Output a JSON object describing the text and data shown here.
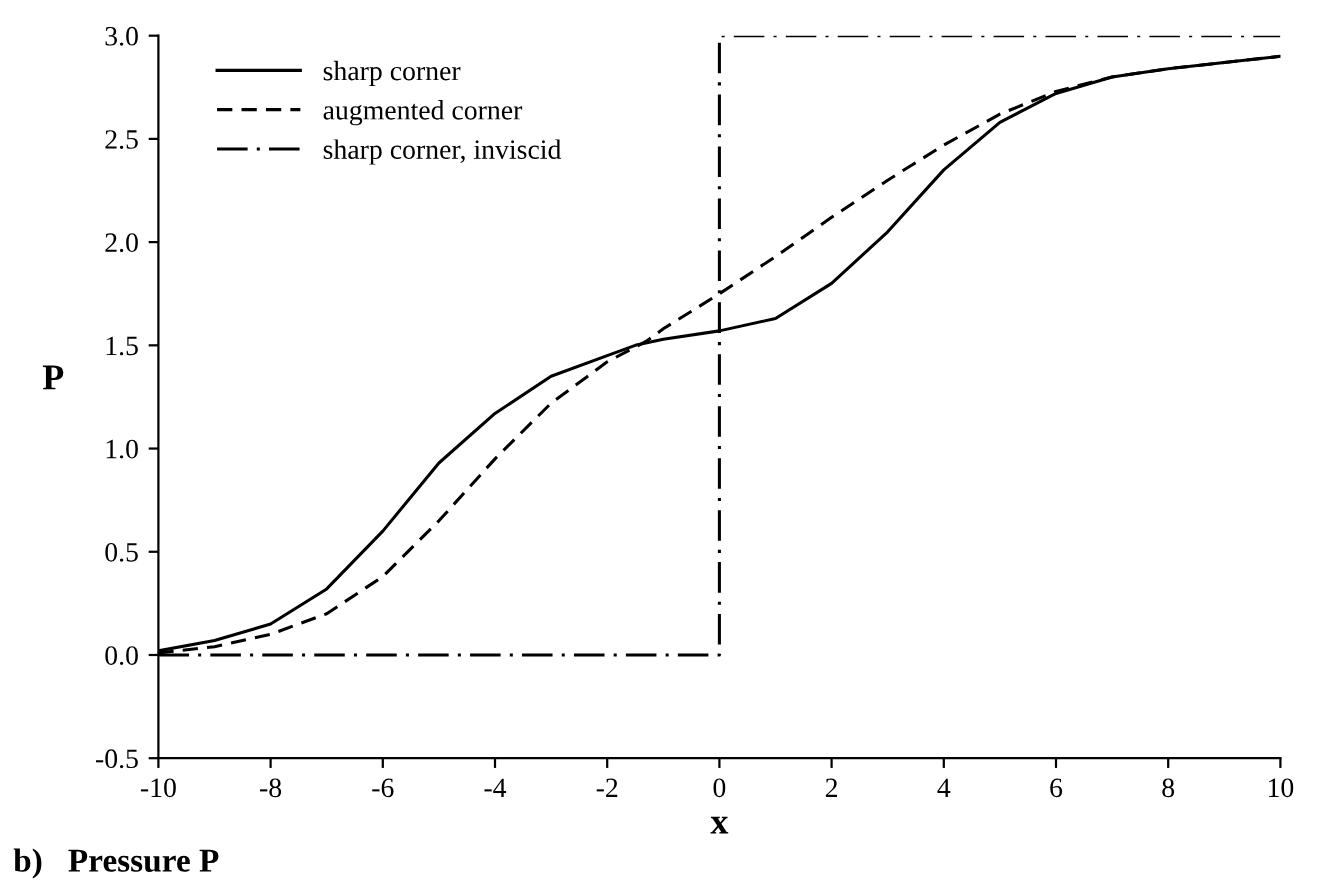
{
  "chart_data": {
    "type": "line",
    "xlabel": "x",
    "ylabel": "P",
    "annotations": [
      "b)   Pressure P"
    ],
    "xlim": [
      -10,
      10
    ],
    "xticks": [
      -10,
      -8,
      -6,
      -4,
      -2,
      0,
      2,
      4,
      6,
      8,
      10
    ],
    "ylim": [
      -0.5,
      3.0
    ],
    "yticks": [
      {
        "value": -0.5,
        "label": "-0.5"
      },
      {
        "value": 0,
        "label": "0.0"
      },
      {
        "value": 0.5,
        "label": "0.5"
      },
      {
        "value": 1.0,
        "label": "1.0"
      },
      {
        "value": 1.5,
        "label": "1.5"
      },
      {
        "value": 2.0,
        "label": "2.0"
      },
      {
        "value": 2.5,
        "label": "2.5"
      },
      {
        "value": 3.0,
        "label": "3.0"
      }
    ],
    "grid": false,
    "legend": "top left",
    "marker": "none",
    "series": [
      {
        "name": "sharp corner",
        "color": "#000000",
        "line_style": "solid",
        "x": [
          -10,
          -9,
          -8,
          -7,
          -6,
          -5,
          -4,
          -3,
          -2,
          -1.5,
          -1,
          0,
          1,
          2,
          3,
          4,
          5,
          6,
          7,
          8,
          9,
          10
        ],
        "values": [
          0.02,
          0.07,
          0.15,
          0.32,
          0.6,
          0.93,
          1.17,
          1.35,
          1.45,
          1.5,
          1.53,
          1.57,
          1.63,
          1.8,
          2.05,
          2.35,
          2.58,
          2.72,
          2.8,
          2.84,
          2.87,
          2.9
        ]
      },
      {
        "name": "augmented corner",
        "color": "#000000",
        "line_style": "dashed",
        "x": [
          -10,
          -9,
          -8,
          -7,
          -6,
          -5,
          -4,
          -3,
          -2,
          -1.3,
          -1,
          0,
          1,
          2,
          3,
          4,
          5,
          6,
          7,
          8,
          9,
          10
        ],
        "values": [
          0.01,
          0.04,
          0.1,
          0.2,
          0.38,
          0.65,
          0.95,
          1.22,
          1.42,
          1.52,
          1.58,
          1.75,
          1.93,
          2.12,
          2.3,
          2.47,
          2.62,
          2.73,
          2.8,
          2.84,
          2.87,
          2.9
        ]
      },
      {
        "name": "sharp corner, inviscid",
        "color": "#000000",
        "line_style": "dashdot",
        "x": [
          -10,
          0,
          0,
          10
        ],
        "values": [
          0,
          0,
          3,
          3
        ]
      }
    ]
  }
}
